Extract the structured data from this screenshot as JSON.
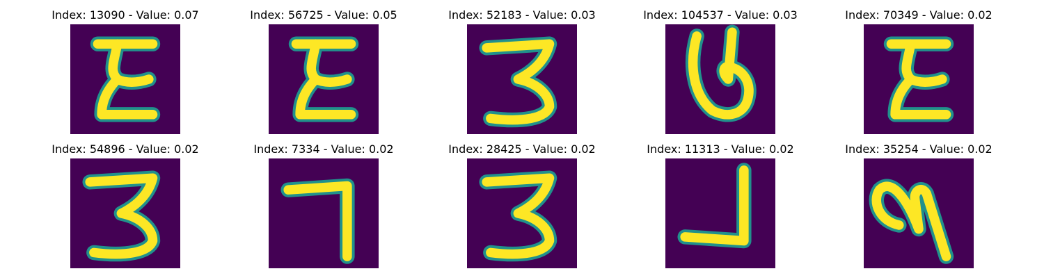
{
  "panels": [
    {
      "title": "Index: 13090 - Value: 0.07",
      "glyph": "E",
      "rotate": 0,
      "flipX": false,
      "flipY": false
    },
    {
      "title": "Index: 56725 - Value: 0.05",
      "glyph": "E",
      "rotate": 0,
      "flipX": false,
      "flipY": false
    },
    {
      "title": "Index: 52183 - Value: 0.03",
      "glyph": "3",
      "rotate": 0,
      "flipX": false,
      "flipY": false
    },
    {
      "title": "Index: 104537 - Value: 0.03",
      "glyph": "P",
      "rotate": 0,
      "flipX": false,
      "flipY": true
    },
    {
      "title": "Index: 70349 - Value: 0.02",
      "glyph": "E",
      "rotate": 0,
      "flipX": false,
      "flipY": false
    },
    {
      "title": "Index: 54896 - Value: 0.02",
      "glyph": "3",
      "rotate": 0,
      "flipX": false,
      "flipY": false
    },
    {
      "title": "Index: 7334 - Value: 0.02",
      "glyph": "7",
      "rotate": 0,
      "flipX": false,
      "flipY": false
    },
    {
      "title": "Index: 28425 - Value: 0.02",
      "glyph": "3",
      "rotate": 0,
      "flipX": false,
      "flipY": false
    },
    {
      "title": "Index: 11313 - Value: 0.02",
      "glyph": "7",
      "rotate": 180,
      "flipX": true,
      "flipY": false
    },
    {
      "title": "Index: 35254 - Value: 0.02",
      "glyph": "N",
      "rotate": 0,
      "flipX": true,
      "flipY": false
    }
  ],
  "colors": {
    "background": "#440154",
    "stroke": "#fde725",
    "edge": "#21918c"
  }
}
